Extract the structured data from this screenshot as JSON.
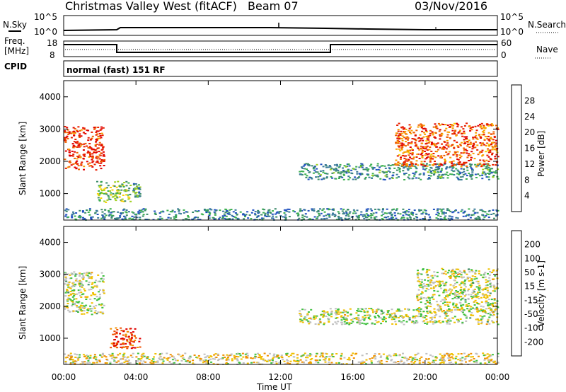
{
  "header": {
    "station": "Christmas Valley West (fitACF)",
    "beam": "Beam 07",
    "date": "03/Nov/2016",
    "mode": "normal (fast) 151 RF"
  },
  "side_labels": {
    "nsky": "N.Sky",
    "nsearch": "N.Search",
    "freq": "Freq.",
    "mhz": "[MHz]",
    "cpid": "CPID",
    "nave": "Nave"
  },
  "noise_axis": {
    "left_top": "10^5",
    "left_bottom": "10^0",
    "right_top": "10^5",
    "right_bottom": "10^0"
  },
  "freq_axis": {
    "left": [
      "18",
      "8"
    ],
    "right": [
      "60",
      "0"
    ]
  },
  "x_axis": {
    "label": "Time UT",
    "ticks": [
      "00:00",
      "04:00",
      "08:00",
      "12:00",
      "16:00",
      "20:00",
      "00:00"
    ]
  },
  "power_panel": {
    "ylabel": "Slant Range [km]",
    "yticks": [
      "4000",
      "3000",
      "2000",
      "1000"
    ],
    "colorbar_label": "Power [dB]",
    "colorbar_ticks": [
      "28",
      "24",
      "20",
      "16",
      "12",
      "8",
      "4"
    ],
    "colors": [
      "#0000e0",
      "#2050c0",
      "#3a7a9a",
      "#3d8c6a",
      "#3cb050",
      "#a0d020",
      "#f8d000",
      "#f8a000",
      "#f06000",
      "#e82000",
      "#e00000"
    ]
  },
  "velocity_panel": {
    "ylabel": "Slant Range [km]",
    "yticks": [
      "4000",
      "3000",
      "2000",
      "1000"
    ],
    "colorbar_label": "Velocity [m s-1]",
    "colorbar_ticks": [
      "200",
      "100",
      "50",
      "15",
      "-15",
      "-50",
      "-100",
      "-200"
    ],
    "colors": [
      "#2030c0",
      "#3060a0",
      "#3a8a60",
      "#40c040",
      "#c0c0c0",
      "#f0c000",
      "#f09000",
      "#f05000",
      "#e00000"
    ]
  },
  "chart_data": [
    {
      "type": "heatmap",
      "title": "Power",
      "xlabel": "Time UT",
      "ylabel": "Slant Range [km]",
      "xlim": [
        0,
        24
      ],
      "ylim": [
        180,
        4500
      ],
      "colorbar": "Power [dB]",
      "clim": [
        0,
        30
      ],
      "regions": [
        {
          "t0": 0.0,
          "t1": 2.2,
          "r0": 1750,
          "r1": 3100,
          "value": 26
        },
        {
          "t0": 1.8,
          "t1": 3.7,
          "r0": 750,
          "r1": 1400,
          "value": 14
        },
        {
          "t0": 3.8,
          "t1": 4.2,
          "r0": 900,
          "r1": 1350,
          "value": 10
        },
        {
          "t0": 0.0,
          "t1": 24.0,
          "r0": 200,
          "r1": 550,
          "value": 8
        },
        {
          "t0": 13.0,
          "t1": 24.0,
          "r0": 1450,
          "r1": 1950,
          "value": 9
        },
        {
          "t0": 18.3,
          "t1": 24.0,
          "r0": 1850,
          "r1": 3200,
          "value": 24
        }
      ]
    },
    {
      "type": "heatmap",
      "title": "Velocity",
      "xlabel": "Time UT",
      "ylabel": "Slant Range [km]",
      "xlim": [
        0,
        24
      ],
      "ylim": [
        180,
        4500
      ],
      "colorbar": "Velocity [m s-1]",
      "clim": [
        -200,
        200
      ],
      "regions": [
        {
          "t0": 0.0,
          "t1": 2.2,
          "r0": 1750,
          "r1": 3100,
          "value": 0
        },
        {
          "t0": 2.5,
          "t1": 4.2,
          "r0": 700,
          "r1": 1350,
          "value": -150
        },
        {
          "t0": 0.0,
          "t1": 24.0,
          "r0": 200,
          "r1": 550,
          "value": -30
        },
        {
          "t0": 13.0,
          "t1": 24.0,
          "r0": 1450,
          "r1": 1950,
          "value": 0
        },
        {
          "t0": 19.5,
          "t1": 24.0,
          "r0": 1850,
          "r1": 3200,
          "value": 0
        }
      ]
    }
  ]
}
